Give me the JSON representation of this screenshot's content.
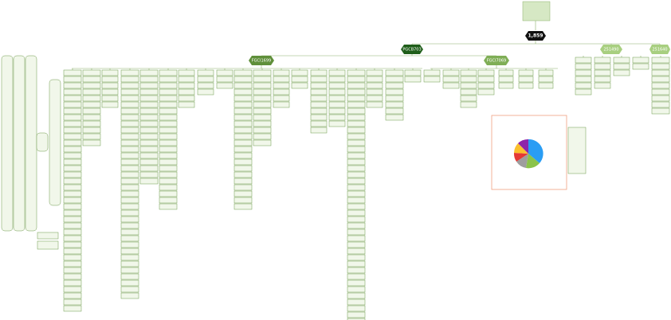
{
  "root": {
    "label": "1,859"
  },
  "level1": [
    {
      "label": "PGCB703"
    },
    {
      "label": "251490"
    },
    {
      "label": "251640"
    }
  ],
  "level2": [
    {
      "label": "FGCI1699"
    },
    {
      "label": "FGCI7069"
    }
  ]
}
